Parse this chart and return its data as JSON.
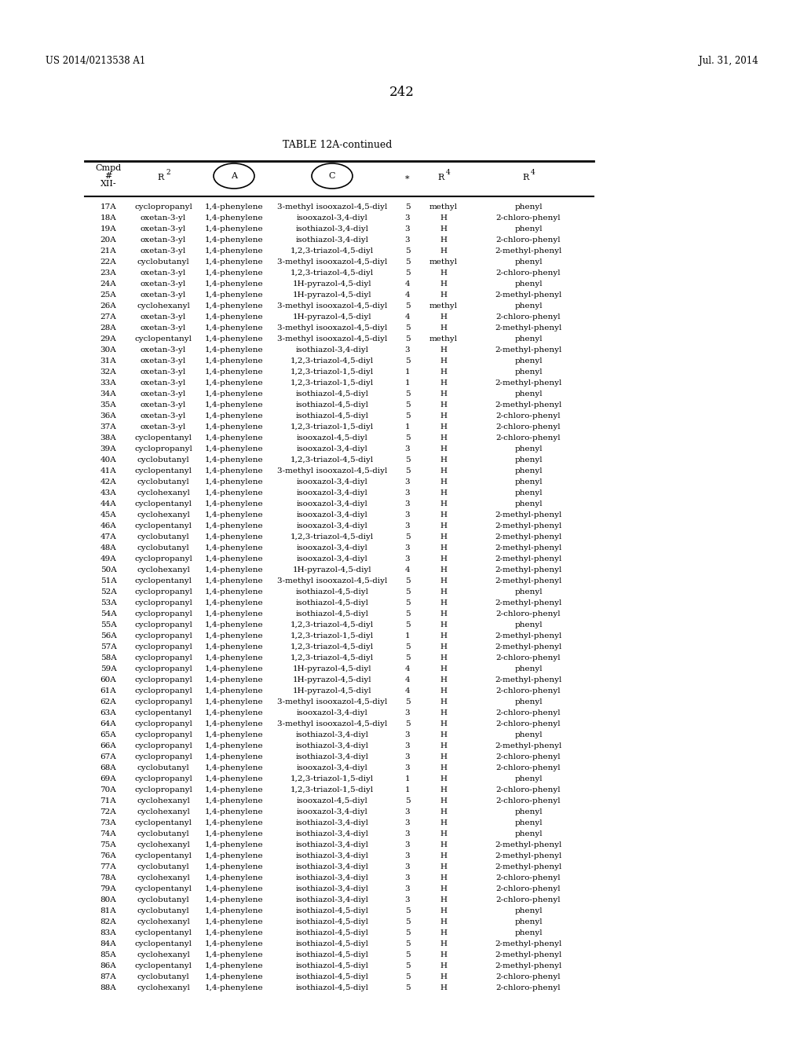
{
  "page_left": "US 2014/0213538 A1",
  "page_right": "Jul. 31, 2014",
  "page_number": "242",
  "table_title": "TABLE 12A-continued",
  "rows": [
    [
      "17A",
      "cyclopropanyl",
      "1,4-phenylene",
      "3-methyl isooxazol-4,5-diyl",
      "5",
      "methyl",
      "phenyl"
    ],
    [
      "18A",
      "oxetan-3-yl",
      "1,4-phenylene",
      "isooxazol-3,4-diyl",
      "3",
      "H",
      "2-chloro-phenyl"
    ],
    [
      "19A",
      "oxetan-3-yl",
      "1,4-phenylene",
      "isothiazol-3,4-diyl",
      "3",
      "H",
      "phenyl"
    ],
    [
      "20A",
      "oxetan-3-yl",
      "1,4-phenylene",
      "isothiazol-3,4-diyl",
      "3",
      "H",
      "2-chloro-phenyl"
    ],
    [
      "21A",
      "oxetan-3-yl",
      "1,4-phenylene",
      "1,2,3-triazol-4,5-diyl",
      "5",
      "H",
      "2-methyl-phenyl"
    ],
    [
      "22A",
      "cyclobutanyl",
      "1,4-phenylene",
      "3-methyl isooxazol-4,5-diyl",
      "5",
      "methyl",
      "phenyl"
    ],
    [
      "23A",
      "oxetan-3-yl",
      "1,4-phenylene",
      "1,2,3-triazol-4,5-diyl",
      "5",
      "H",
      "2-chloro-phenyl"
    ],
    [
      "24A",
      "oxetan-3-yl",
      "1,4-phenylene",
      "1H-pyrazol-4,5-diyl",
      "4",
      "H",
      "phenyl"
    ],
    [
      "25A",
      "oxetan-3-yl",
      "1,4-phenylene",
      "1H-pyrazol-4,5-diyl",
      "4",
      "H",
      "2-methyl-phenyl"
    ],
    [
      "26A",
      "cyclohexanyl",
      "1,4-phenylene",
      "3-methyl isooxazol-4,5-diyl",
      "5",
      "methyl",
      "phenyl"
    ],
    [
      "27A",
      "oxetan-3-yl",
      "1,4-phenylene",
      "1H-pyrazol-4,5-diyl",
      "4",
      "H",
      "2-chloro-phenyl"
    ],
    [
      "28A",
      "oxetan-3-yl",
      "1,4-phenylene",
      "3-methyl isooxazol-4,5-diyl",
      "5",
      "H",
      "2-methyl-phenyl"
    ],
    [
      "29A",
      "cyclopentanyl",
      "1,4-phenylene",
      "3-methyl isooxazol-4,5-diyl",
      "5",
      "methyl",
      "phenyl"
    ],
    [
      "30A",
      "oxetan-3-yl",
      "1,4-phenylene",
      "isothiazol-3,4-diyl",
      "3",
      "H",
      "2-methyl-phenyl"
    ],
    [
      "31A",
      "oxetan-3-yl",
      "1,4-phenylene",
      "1,2,3-triazol-4,5-diyl",
      "5",
      "H",
      "phenyl"
    ],
    [
      "32A",
      "oxetan-3-yl",
      "1,4-phenylene",
      "1,2,3-triazol-1,5-diyl",
      "1",
      "H",
      "phenyl"
    ],
    [
      "33A",
      "oxetan-3-yl",
      "1,4-phenylene",
      "1,2,3-triazol-1,5-diyl",
      "1",
      "H",
      "2-methyl-phenyl"
    ],
    [
      "34A",
      "oxetan-3-yl",
      "1,4-phenylene",
      "isothiazol-4,5-diyl",
      "5",
      "H",
      "phenyl"
    ],
    [
      "35A",
      "oxetan-3-yl",
      "1,4-phenylene",
      "isothiazol-4,5-diyl",
      "5",
      "H",
      "2-methyl-phenyl"
    ],
    [
      "36A",
      "oxetan-3-yl",
      "1,4-phenylene",
      "isothiazol-4,5-diyl",
      "5",
      "H",
      "2-chloro-phenyl"
    ],
    [
      "37A",
      "oxetan-3-yl",
      "1,4-phenylene",
      "1,2,3-triazol-1,5-diyl",
      "1",
      "H",
      "2-chloro-phenyl"
    ],
    [
      "38A",
      "cyclopentanyl",
      "1,4-phenylene",
      "isooxazol-4,5-diyl",
      "5",
      "H",
      "2-chloro-phenyl"
    ],
    [
      "39A",
      "cyclopropanyl",
      "1,4-phenylene",
      "isooxazol-3,4-diyl",
      "3",
      "H",
      "phenyl"
    ],
    [
      "40A",
      "cyclobutanyl",
      "1,4-phenylene",
      "1,2,3-triazol-4,5-diyl",
      "5",
      "H",
      "phenyl"
    ],
    [
      "41A",
      "cyclopentanyl",
      "1,4-phenylene",
      "3-methyl isooxazol-4,5-diyl",
      "5",
      "H",
      "phenyl"
    ],
    [
      "42A",
      "cyclobutanyl",
      "1,4-phenylene",
      "isooxazol-3,4-diyl",
      "3",
      "H",
      "phenyl"
    ],
    [
      "43A",
      "cyclohexanyl",
      "1,4-phenylene",
      "isooxazol-3,4-diyl",
      "3",
      "H",
      "phenyl"
    ],
    [
      "44A",
      "cyclopentanyl",
      "1,4-phenylene",
      "isooxazol-3,4-diyl",
      "3",
      "H",
      "phenyl"
    ],
    [
      "45A",
      "cyclohexanyl",
      "1,4-phenylene",
      "isooxazol-3,4-diyl",
      "3",
      "H",
      "2-methyl-phenyl"
    ],
    [
      "46A",
      "cyclopentanyl",
      "1,4-phenylene",
      "isooxazol-3,4-diyl",
      "3",
      "H",
      "2-methyl-phenyl"
    ],
    [
      "47A",
      "cyclobutanyl",
      "1,4-phenylene",
      "1,2,3-triazol-4,5-diyl",
      "5",
      "H",
      "2-methyl-phenyl"
    ],
    [
      "48A",
      "cyclobutanyl",
      "1,4-phenylene",
      "isooxazol-3,4-diyl",
      "3",
      "H",
      "2-methyl-phenyl"
    ],
    [
      "49A",
      "cyclopropanyl",
      "1,4-phenylene",
      "isooxazol-3,4-diyl",
      "3",
      "H",
      "2-methyl-phenyl"
    ],
    [
      "50A",
      "cyclohexanyl",
      "1,4-phenylene",
      "1H-pyrazol-4,5-diyl",
      "4",
      "H",
      "2-methyl-phenyl"
    ],
    [
      "51A",
      "cyclopentanyl",
      "1,4-phenylene",
      "3-methyl isooxazol-4,5-diyl",
      "5",
      "H",
      "2-methyl-phenyl"
    ],
    [
      "52A",
      "cyclopropanyl",
      "1,4-phenylene",
      "isothiazol-4,5-diyl",
      "5",
      "H",
      "phenyl"
    ],
    [
      "53A",
      "cyclopropanyl",
      "1,4-phenylene",
      "isothiazol-4,5-diyl",
      "5",
      "H",
      "2-methyl-phenyl"
    ],
    [
      "54A",
      "cyclopropanyl",
      "1,4-phenylene",
      "isothiazol-4,5-diyl",
      "5",
      "H",
      "2-chloro-phenyl"
    ],
    [
      "55A",
      "cyclopropanyl",
      "1,4-phenylene",
      "1,2,3-triazol-4,5-diyl",
      "5",
      "H",
      "phenyl"
    ],
    [
      "56A",
      "cyclopropanyl",
      "1,4-phenylene",
      "1,2,3-triazol-1,5-diyl",
      "1",
      "H",
      "2-methyl-phenyl"
    ],
    [
      "57A",
      "cyclopropanyl",
      "1,4-phenylene",
      "1,2,3-triazol-4,5-diyl",
      "5",
      "H",
      "2-methyl-phenyl"
    ],
    [
      "58A",
      "cyclopropanyl",
      "1,4-phenylene",
      "1,2,3-triazol-4,5-diyl",
      "5",
      "H",
      "2-chloro-phenyl"
    ],
    [
      "59A",
      "cyclopropanyl",
      "1,4-phenylene",
      "1H-pyrazol-4,5-diyl",
      "4",
      "H",
      "phenyl"
    ],
    [
      "60A",
      "cyclopropanyl",
      "1,4-phenylene",
      "1H-pyrazol-4,5-diyl",
      "4",
      "H",
      "2-methyl-phenyl"
    ],
    [
      "61A",
      "cyclopropanyl",
      "1,4-phenylene",
      "1H-pyrazol-4,5-diyl",
      "4",
      "H",
      "2-chloro-phenyl"
    ],
    [
      "62A",
      "cyclopropanyl",
      "1,4-phenylene",
      "3-methyl isooxazol-4,5-diyl",
      "5",
      "H",
      "phenyl"
    ],
    [
      "63A",
      "cyclopentanyl",
      "1,4-phenylene",
      "isooxazol-3,4-diyl",
      "3",
      "H",
      "2-chloro-phenyl"
    ],
    [
      "64A",
      "cyclopropanyl",
      "1,4-phenylene",
      "3-methyl isooxazol-4,5-diyl",
      "5",
      "H",
      "2-chloro-phenyl"
    ],
    [
      "65A",
      "cyclopropanyl",
      "1,4-phenylene",
      "isothiazol-3,4-diyl",
      "3",
      "H",
      "phenyl"
    ],
    [
      "66A",
      "cyclopropanyl",
      "1,4-phenylene",
      "isothiazol-3,4-diyl",
      "3",
      "H",
      "2-methyl-phenyl"
    ],
    [
      "67A",
      "cyclopropanyl",
      "1,4-phenylene",
      "isothiazol-3,4-diyl",
      "3",
      "H",
      "2-chloro-phenyl"
    ],
    [
      "68A",
      "cyclobutanyl",
      "1,4-phenylene",
      "isooxazol-3,4-diyl",
      "3",
      "H",
      "2-chloro-phenyl"
    ],
    [
      "69A",
      "cyclopropanyl",
      "1,4-phenylene",
      "1,2,3-triazol-1,5-diyl",
      "1",
      "H",
      "phenyl"
    ],
    [
      "70A",
      "cyclopropanyl",
      "1,4-phenylene",
      "1,2,3-triazol-1,5-diyl",
      "1",
      "H",
      "2-chloro-phenyl"
    ],
    [
      "71A",
      "cyclohexanyl",
      "1,4-phenylene",
      "isooxazol-4,5-diyl",
      "5",
      "H",
      "2-chloro-phenyl"
    ],
    [
      "72A",
      "cyclohexanyl",
      "1,4-phenylene",
      "isooxazol-3,4-diyl",
      "3",
      "H",
      "phenyl"
    ],
    [
      "73A",
      "cyclopentanyl",
      "1,4-phenylene",
      "isothiazol-3,4-diyl",
      "3",
      "H",
      "phenyl"
    ],
    [
      "74A",
      "cyclobutanyl",
      "1,4-phenylene",
      "isothiazol-3,4-diyl",
      "3",
      "H",
      "phenyl"
    ],
    [
      "75A",
      "cyclohexanyl",
      "1,4-phenylene",
      "isothiazol-3,4-diyl",
      "3",
      "H",
      "2-methyl-phenyl"
    ],
    [
      "76A",
      "cyclopentanyl",
      "1,4-phenylene",
      "isothiazol-3,4-diyl",
      "3",
      "H",
      "2-methyl-phenyl"
    ],
    [
      "77A",
      "cyclobutanyl",
      "1,4-phenylene",
      "isothiazol-3,4-diyl",
      "3",
      "H",
      "2-methyl-phenyl"
    ],
    [
      "78A",
      "cyclohexanyl",
      "1,4-phenylene",
      "isothiazol-3,4-diyl",
      "3",
      "H",
      "2-chloro-phenyl"
    ],
    [
      "79A",
      "cyclopentanyl",
      "1,4-phenylene",
      "isothiazol-3,4-diyl",
      "3",
      "H",
      "2-chloro-phenyl"
    ],
    [
      "80A",
      "cyclobutanyl",
      "1,4-phenylene",
      "isothiazol-3,4-diyl",
      "3",
      "H",
      "2-chloro-phenyl"
    ],
    [
      "81A",
      "cyclobutanyl",
      "1,4-phenylene",
      "isothiazol-4,5-diyl",
      "5",
      "H",
      "phenyl"
    ],
    [
      "82A",
      "cyclohexanyl",
      "1,4-phenylene",
      "isothiazol-4,5-diyl",
      "5",
      "H",
      "phenyl"
    ],
    [
      "83A",
      "cyclopentanyl",
      "1,4-phenylene",
      "isothiazol-4,5-diyl",
      "5",
      "H",
      "phenyl"
    ],
    [
      "84A",
      "cyclopentanyl",
      "1,4-phenylene",
      "isothiazol-4,5-diyl",
      "5",
      "H",
      "2-methyl-phenyl"
    ],
    [
      "85A",
      "cyclohexanyl",
      "1,4-phenylene",
      "isothiazol-4,5-diyl",
      "5",
      "H",
      "2-methyl-phenyl"
    ],
    [
      "86A",
      "cyclopentanyl",
      "1,4-phenylene",
      "isothiazol-4,5-diyl",
      "5",
      "H",
      "2-methyl-phenyl"
    ],
    [
      "87A",
      "cyclobutanyl",
      "1,4-phenylene",
      "isothiazol-4,5-diyl",
      "5",
      "H",
      "2-chloro-phenyl"
    ],
    [
      "88A",
      "cyclohexanyl",
      "1,4-phenylene",
      "isothiazol-4,5-diyl",
      "5",
      "H",
      "2-chloro-phenyl"
    ]
  ],
  "bg_color": "#ffffff",
  "text_color": "#000000",
  "line_color": "#000000"
}
